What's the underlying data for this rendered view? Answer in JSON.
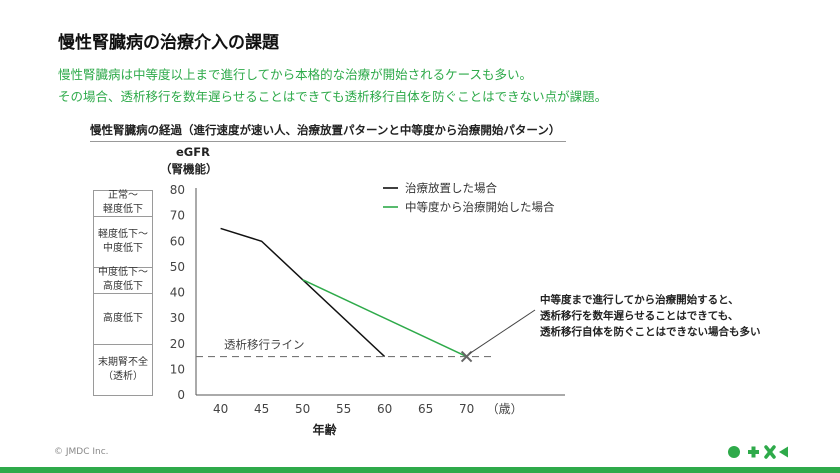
{
  "title": "慢性腎臓病の治療介入の課題",
  "lead": [
    "慢性腎臓病は中等度以上まで進行してから本格的な治療が開始されるケースも多い。",
    "その場合、透析移行を数年遅らせることはできても透析移行自体を防ぐことはできない点が課題。"
  ],
  "copyright": "© JMDC Inc.",
  "colors": {
    "accent": "#2eaa4a",
    "black_series": "#111111",
    "dashed": "#777777",
    "marker": "#666666"
  },
  "chart_data": {
    "type": "line",
    "title": "慢性腎臓病の経過（進行速度が速い人、治療放置パターンと中等度から治療開始パターン）",
    "ylabel_line1": "eGFR",
    "ylabel_line2": "（腎機能）",
    "xlabel": "年齢",
    "x_unit": "（歳）",
    "x_ticks": [
      40,
      45,
      50,
      55,
      60,
      65,
      70
    ],
    "y_ticks": [
      0,
      10,
      20,
      30,
      40,
      50,
      60,
      70,
      80
    ],
    "xlim": [
      37,
      82
    ],
    "ylim": [
      0,
      80
    ],
    "grid": false,
    "legend_position": "top-right",
    "series": [
      {
        "name": "治療放置した場合",
        "color": "#111111",
        "points": [
          [
            40,
            65
          ],
          [
            45,
            60
          ],
          [
            60,
            15
          ]
        ]
      },
      {
        "name": "中等度から治療開始した場合",
        "color": "#2eaa4a",
        "points": [
          [
            50,
            45
          ],
          [
            70,
            15
          ]
        ]
      }
    ],
    "threshold": {
      "label": "透析移行ライン",
      "value": 15
    },
    "marker": {
      "x": 70,
      "y": 15
    },
    "annotation": [
      "中等度まで進行してから治療開始すると、",
      "透析移行を数年遅らせることはできても、",
      "透析移行自体を防ぐことはできない場合も多い"
    ],
    "stages": [
      {
        "lines": [
          "正常～",
          "軽度低下"
        ],
        "from": 70,
        "to": 80
      },
      {
        "lines": [
          "軽度低下～",
          "中度低下"
        ],
        "from": 50,
        "to": 70
      },
      {
        "lines": [
          "中度低下～",
          "高度低下"
        ],
        "from": 40,
        "to": 50
      },
      {
        "lines": [
          "高度低下"
        ],
        "from": 20,
        "to": 40
      },
      {
        "lines": [
          "末期腎不全",
          "（透析）"
        ],
        "from": 0,
        "to": 20
      }
    ]
  }
}
